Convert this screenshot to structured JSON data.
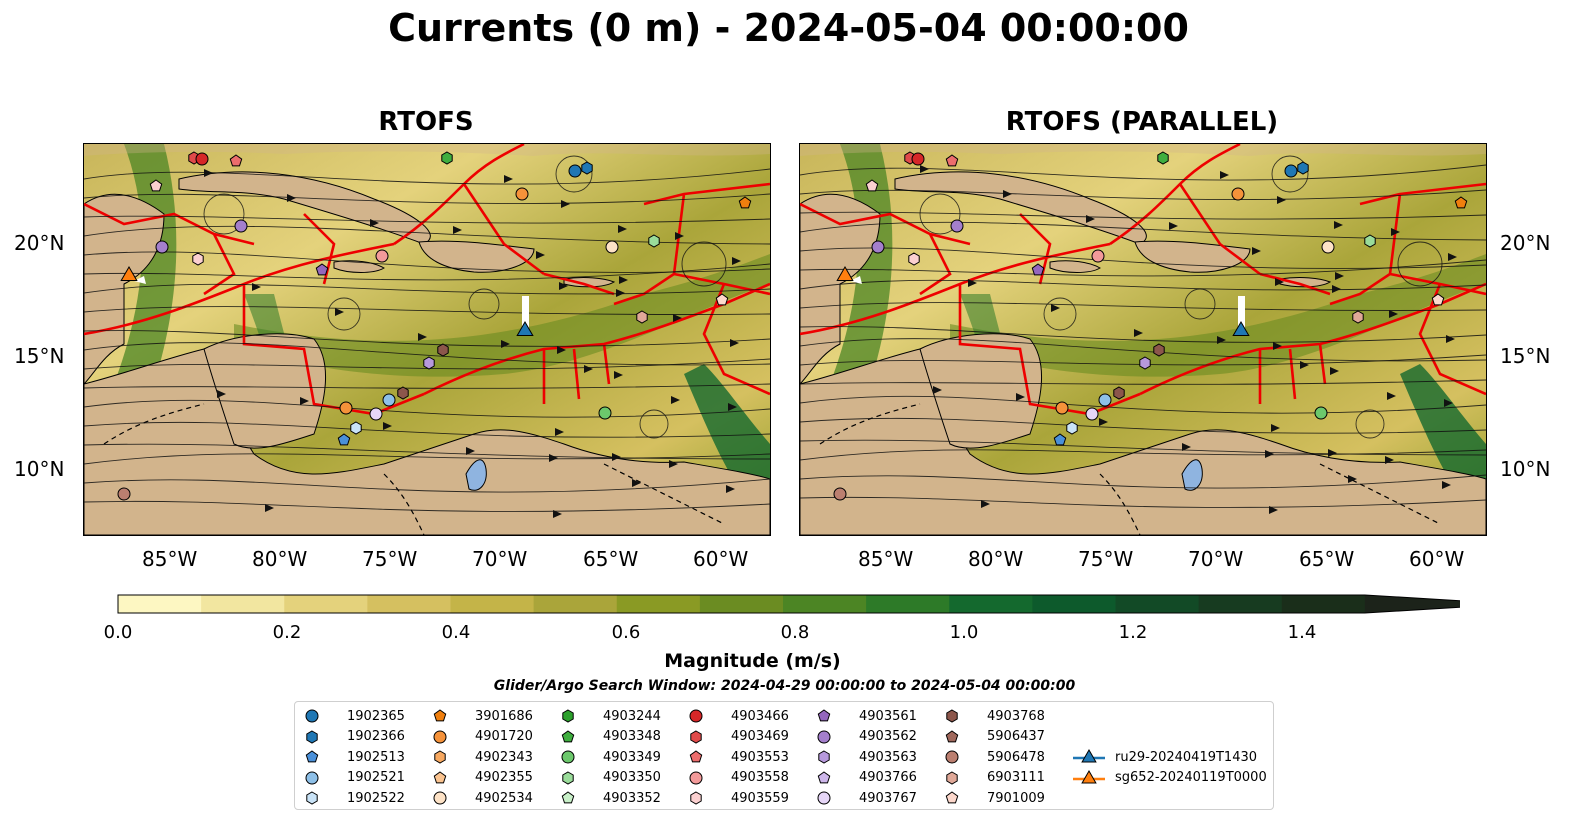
{
  "title": "Currents (0 m) - 2024-05-04 00:00:00",
  "panels": [
    {
      "title": "RTOFS",
      "lon_ticks": [
        "85°W",
        "80°W",
        "75°W",
        "70°W",
        "65°W",
        "60°W"
      ],
      "lat_ticks": [
        "20°N",
        "15°N",
        "10°N"
      ]
    },
    {
      "title": "RTOFS (PARALLEL)",
      "lon_ticks": [
        "85°W",
        "80°W",
        "75°W",
        "70°W",
        "65°W",
        "60°W"
      ],
      "lat_ticks": [
        "20°N",
        "15°N",
        "10°N"
      ]
    }
  ],
  "colorbar": {
    "label": "Magnitude (m/s)",
    "ticks": [
      "0.0",
      "0.2",
      "0.4",
      "0.6",
      "0.8",
      "1.0",
      "1.2",
      "1.4"
    ],
    "colors": [
      "#fdf7c2",
      "#f2e6a0",
      "#e4d27c",
      "#d5c060",
      "#c4b448",
      "#aaa53a",
      "#8a9a24",
      "#6b8c22",
      "#4c8524",
      "#2d7a28",
      "#14692e",
      "#0d5a2c",
      "#124a26",
      "#173b20",
      "#1a2e1a",
      "#1c231a"
    ],
    "vmin": 0.0,
    "vmax": 1.5
  },
  "search_window": "Glider/Argo Search Window: 2024-04-29 00:00:00 to 2024-05-04 00:00:00",
  "legend": {
    "items": [
      {
        "label": "1902365",
        "marker": "circle",
        "color": "#1f77b4"
      },
      {
        "label": "1902366",
        "marker": "hexagon",
        "color": "#1f77b4"
      },
      {
        "label": "1902513",
        "marker": "pentagon",
        "color": "#4a90d9"
      },
      {
        "label": "1902521",
        "marker": "circle",
        "color": "#8ec0e8"
      },
      {
        "label": "1902522",
        "marker": "hexagon",
        "color": "#c9e3f7"
      },
      {
        "label": "3901686",
        "marker": "pentagon",
        "color": "#f07f0e"
      },
      {
        "label": "4901720",
        "marker": "circle",
        "color": "#f5923a"
      },
      {
        "label": "4902343",
        "marker": "hexagon",
        "color": "#f7a860"
      },
      {
        "label": "4902355",
        "marker": "pentagon",
        "color": "#fbc490"
      },
      {
        "label": "4902534",
        "marker": "circle",
        "color": "#fde2c6"
      },
      {
        "label": "4903244",
        "marker": "hexagon",
        "color": "#2ca02c"
      },
      {
        "label": "4903348",
        "marker": "pentagon",
        "color": "#3fae3f"
      },
      {
        "label": "4903349",
        "marker": "circle",
        "color": "#6cc86c"
      },
      {
        "label": "4903350",
        "marker": "hexagon",
        "color": "#9adc9a"
      },
      {
        "label": "4903352",
        "marker": "pentagon",
        "color": "#c8f0c8"
      },
      {
        "label": "4903466",
        "marker": "circle",
        "color": "#d62728"
      },
      {
        "label": "4903469",
        "marker": "hexagon",
        "color": "#e04a4a"
      },
      {
        "label": "4903553",
        "marker": "pentagon",
        "color": "#ec6d6d"
      },
      {
        "label": "4903558",
        "marker": "circle",
        "color": "#f39a9a"
      },
      {
        "label": "4903559",
        "marker": "hexagon",
        "color": "#fbd0d0"
      },
      {
        "label": "4903561",
        "marker": "pentagon",
        "color": "#9467bd"
      },
      {
        "label": "4903562",
        "marker": "circle",
        "color": "#a47fcc"
      },
      {
        "label": "4903563",
        "marker": "hexagon",
        "color": "#b799dc"
      },
      {
        "label": "4903766",
        "marker": "pentagon",
        "color": "#cdb6ea"
      },
      {
        "label": "4903767",
        "marker": "circle",
        "color": "#e6d6f7"
      },
      {
        "label": "4903768",
        "marker": "hexagon",
        "color": "#8c564b"
      },
      {
        "label": "5906437",
        "marker": "pentagon",
        "color": "#a0685c"
      },
      {
        "label": "5906478",
        "marker": "circle",
        "color": "#bb7f70"
      },
      {
        "label": "6903111",
        "marker": "hexagon",
        "color": "#e0a898"
      },
      {
        "label": "7901009",
        "marker": "pentagon",
        "color": "#fdd8cc"
      },
      {
        "label": "ru29-20240419T1430",
        "marker": "triangle-line",
        "color": "#1f77b4"
      },
      {
        "label": "sg652-20240119T0000",
        "marker": "triangle-line",
        "color": "#ff7f0e"
      }
    ]
  }
}
